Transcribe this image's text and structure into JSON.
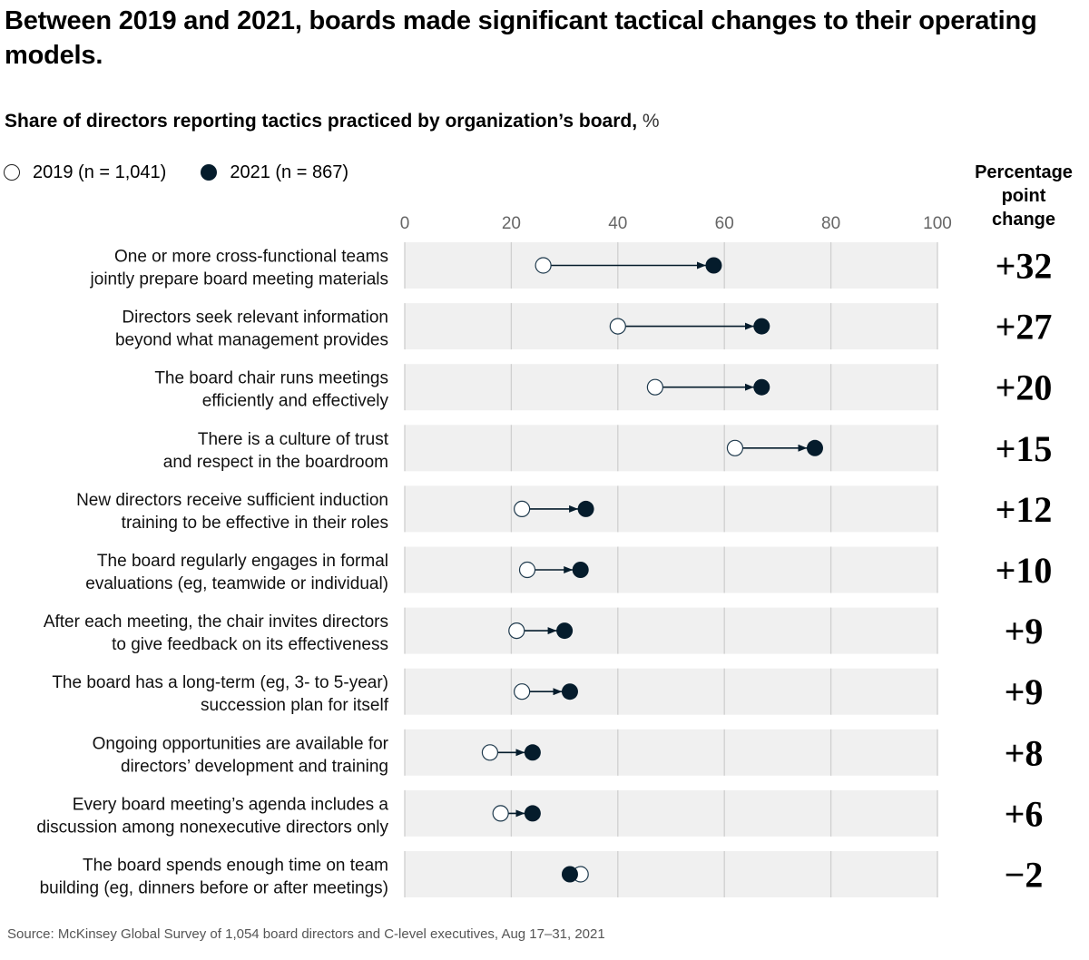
{
  "title": "Between 2019 and 2021, boards made significant tactical changes to their operating models.",
  "subtitle": {
    "main": "Share of directors reporting tactics practiced by organization’s board,",
    "unit": " %"
  },
  "legend": [
    {
      "label": "2019 (n = 1,041)",
      "style": "open"
    },
    {
      "label": "2021 (n = 867)",
      "style": "filled"
    }
  ],
  "change_header": [
    "Percentage",
    "point",
    "change"
  ],
  "source": "Source: McKinsey Global Survey of 1,054 board directors and C-level executives, Aug 17–31, 2021",
  "colors": {
    "filled_marker": "#051c2c",
    "open_marker_fill": "#ffffff",
    "open_marker_stroke": "#1f3a4d",
    "band": "#f0f0f0",
    "gridline": "#cfcfcf",
    "connector": "#051c2c"
  },
  "chart_data": {
    "type": "dumbbell",
    "title": "Share of directors reporting tactics practiced by organization’s board, %",
    "xlabel": "",
    "ylabel": "",
    "xlim": [
      0,
      100
    ],
    "xticks": [
      0,
      20,
      40,
      60,
      80,
      100
    ],
    "grid": true,
    "legend_position": "top-left",
    "series": [
      {
        "name": "2019 (n = 1,041)",
        "key": "y2019"
      },
      {
        "name": "2021 (n = 867)",
        "key": "y2021"
      }
    ],
    "rows": [
      {
        "label": [
          "One or more cross-functional teams",
          "jointly prepare board meeting materials"
        ],
        "y2019": 26,
        "y2021": 58,
        "change": "+32"
      },
      {
        "label": [
          "Directors seek relevant information",
          "beyond what management provides"
        ],
        "y2019": 40,
        "y2021": 67,
        "change": "+27"
      },
      {
        "label": [
          "The board chair runs meetings",
          "efficiently and effectively"
        ],
        "y2019": 47,
        "y2021": 67,
        "change": "+20"
      },
      {
        "label": [
          "There is a culture of trust",
          "and respect in the boardroom"
        ],
        "y2019": 62,
        "y2021": 77,
        "change": "+15"
      },
      {
        "label": [
          "New directors receive sufficient induction",
          "training to be effective in their roles"
        ],
        "y2019": 22,
        "y2021": 34,
        "change": "+12"
      },
      {
        "label": [
          "The board regularly engages in formal",
          "evaluations (eg, teamwide or individual)"
        ],
        "y2019": 23,
        "y2021": 33,
        "change": "+10"
      },
      {
        "label": [
          "After each meeting, the chair invites directors",
          "to give feedback on its effectiveness"
        ],
        "y2019": 21,
        "y2021": 30,
        "change": "+9"
      },
      {
        "label": [
          "The board has a long-term (eg, 3- to 5-year)",
          "succession plan for itself"
        ],
        "y2019": 22,
        "y2021": 31,
        "change": "+9"
      },
      {
        "label": [
          "Ongoing opportunities are available for",
          "directors’ development and training"
        ],
        "y2019": 16,
        "y2021": 24,
        "change": "+8"
      },
      {
        "label": [
          "Every board meeting’s agenda includes a",
          "discussion among nonexecutive directors only"
        ],
        "y2019": 18,
        "y2021": 24,
        "change": "+6"
      },
      {
        "label": [
          "The board spends enough time on team",
          "building (eg, dinners before or after meetings)"
        ],
        "y2019": 33,
        "y2021": 31,
        "change": "−2"
      }
    ]
  }
}
